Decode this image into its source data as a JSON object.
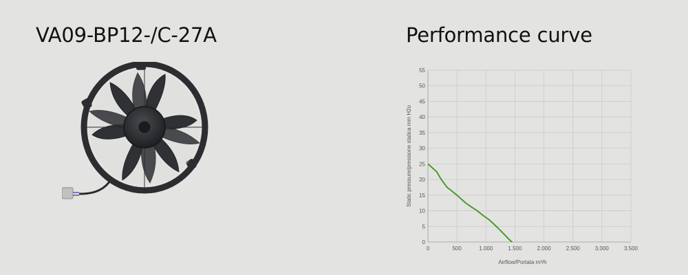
{
  "product": {
    "model": "VA09-BP12-/C-27A"
  },
  "chart_heading": "Performance curve",
  "colors": {
    "background": "#e3e4e2",
    "curve": "#4a9a2a",
    "grid": "#c9cac8",
    "fan": "#2b2d30"
  },
  "fan_image": {
    "icon": "axial-fan-icon"
  },
  "chart_data": {
    "type": "line",
    "xlabel": "Airflow/Portata m³/h",
    "ylabel": "Static pressure/pressione statica mm H2o",
    "xlim": [
      0,
      3500
    ],
    "ylim": [
      0,
      55
    ],
    "x_ticks": [
      "0",
      "500",
      "1.000",
      "1.500",
      "2.000",
      "2.500",
      "3.000",
      "3.500"
    ],
    "y_ticks": [
      "0",
      "5",
      "10",
      "15",
      "20",
      "25",
      "30",
      "35",
      "40",
      "45",
      "50",
      "55"
    ],
    "grid": true,
    "legend": "none",
    "series": [
      {
        "color": "#4a9a2a",
        "x": [
          0,
          150,
          230,
          330,
          400,
          500,
          560,
          650,
          750,
          850,
          950,
          1050,
          1150,
          1250,
          1350,
          1400,
          1450
        ],
        "y": [
          25,
          22.5,
          20,
          17.5,
          16.5,
          15,
          14,
          12.5,
          11.2,
          10,
          8.5,
          7.2,
          5.5,
          3.7,
          1.8,
          0.8,
          0
        ]
      }
    ]
  }
}
